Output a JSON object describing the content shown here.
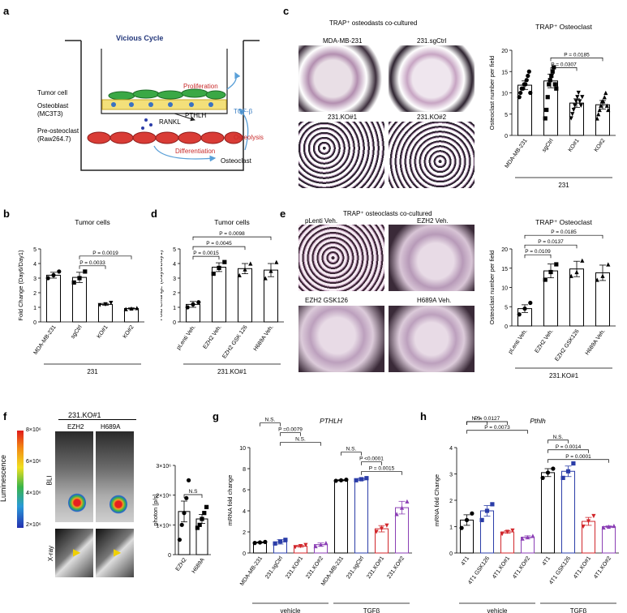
{
  "panels": {
    "a": {
      "letter": "a",
      "title": "Vicious Cycle",
      "labels": [
        "Tumor cell",
        "Osteoblast",
        "(MC3T3)",
        "Pre-osteoclast",
        "(Raw264.7)",
        "Proliferation",
        "PTHLH",
        "RANKL",
        "TGF-β",
        "Osteolysis",
        "Differentiation",
        "Osteoclast"
      ]
    },
    "c": {
      "letter": "c",
      "title": "TRAP⁺ osteodasts co-cultured",
      "images": [
        "MDA-MB-231",
        "231.sgCtrl",
        "231.KO#1",
        "231.KO#2"
      ]
    },
    "b": {
      "letter": "b"
    },
    "d": {
      "letter": "d"
    },
    "e": {
      "letter": "e",
      "title": "TRAP⁺ osteoclasts co-cultured",
      "images": [
        "pLenti Veh.",
        "EZH2 Veh.",
        "EZH2 GSK126",
        "H689A Veh."
      ]
    },
    "f": {
      "letter": "f",
      "group": "231.KO#1",
      "cols": [
        "EZH2",
        "H689A"
      ],
      "bli_label": "BLI",
      "xray_label": "X-ray",
      "lum_label": "Luminescence",
      "scale": [
        "8×10⁶",
        "6×10⁶",
        "4×10⁶",
        "2×10⁶"
      ]
    },
    "g": {
      "letter": "g"
    },
    "h": {
      "letter": "h"
    }
  },
  "chart_data": [
    {
      "id": "c-chart",
      "type": "bar",
      "title": "TRAP⁺ Osteoclast",
      "ylabel": "Osteoclast number per field",
      "ylim": [
        0,
        20
      ],
      "yticks": [
        0,
        5,
        10,
        15,
        20
      ],
      "categories": [
        "MDA-MB-231",
        "sgCtrl",
        "KO#1",
        "KO#2"
      ],
      "values": [
        11.8,
        12.8,
        7.6,
        7.2
      ],
      "errors": [
        1.0,
        1.6,
        1.0,
        1.0
      ],
      "points": [
        [
          9,
          10,
          11,
          11,
          12,
          12,
          13,
          14,
          15,
          10
        ],
        [
          4,
          6,
          9,
          12,
          13,
          14,
          15,
          16,
          12,
          11
        ],
        [
          4,
          5,
          6,
          7,
          8,
          9,
          10,
          8,
          7,
          9
        ],
        [
          4,
          5,
          6,
          7,
          8,
          8,
          9,
          10,
          7,
          6
        ]
      ],
      "markers": [
        "circle",
        "square",
        "triangle-down",
        "triangle-up"
      ],
      "colors": [
        "#000",
        "#000",
        "#000",
        "#000"
      ],
      "group_label": "231",
      "pvalues": [
        {
          "from": 1,
          "to": 3,
          "text": "P = 0.0185"
        },
        {
          "from": 1,
          "to": 2,
          "text": "P = 0.0307"
        }
      ]
    },
    {
      "id": "b-chart",
      "type": "bar",
      "title": "Tumor cells",
      "ylabel": "Fold Change (Day6/Day1)",
      "ylim": [
        0,
        5
      ],
      "yticks": [
        0,
        1,
        2,
        3,
        4,
        5
      ],
      "categories": [
        "MDA-MB-231",
        "sgCtrl",
        "KO#1",
        "KO#2"
      ],
      "values": [
        3.2,
        3.05,
        1.2,
        0.92
      ],
      "errors": [
        0.2,
        0.35,
        0.07,
        0.04
      ],
      "points": [
        [
          3.0,
          3.2,
          3.45
        ],
        [
          2.7,
          3.0,
          3.45
        ],
        [
          1.15,
          1.2,
          1.3
        ],
        [
          0.88,
          0.92,
          0.95
        ]
      ],
      "markers": [
        "circle",
        "square",
        "triangle-down",
        "triangle-up"
      ],
      "colors": [
        "#000",
        "#000",
        "#000",
        "#000"
      ],
      "group_label": "231",
      "pvalues": [
        {
          "from": 1,
          "to": 3,
          "text": "P = 0.0019"
        },
        {
          "from": 1,
          "to": 2,
          "text": "P = 0.0033"
        }
      ]
    },
    {
      "id": "d-chart",
      "type": "bar",
      "title": "Tumor cells",
      "ylabel": "Fold Change (Day6/Day1)",
      "ylim": [
        0,
        5
      ],
      "yticks": [
        0,
        1,
        2,
        3,
        4,
        5
      ],
      "categories": [
        "pLenti Veh.",
        "EZH2 Veh.",
        "EZH2 GSK 126",
        "H689A Veh."
      ],
      "values": [
        1.2,
        3.75,
        3.65,
        3.55
      ],
      "errors": [
        0.2,
        0.3,
        0.35,
        0.45
      ],
      "points": [
        [
          1.0,
          1.2,
          1.35
        ],
        [
          3.3,
          3.7,
          4.1
        ],
        [
          3.2,
          3.6,
          4.0
        ],
        [
          3.0,
          3.5,
          4.1
        ]
      ],
      "markers": [
        "circle",
        "square",
        "triangle-up",
        "triangle-up"
      ],
      "colors": [
        "#000",
        "#000",
        "#000",
        "#000"
      ],
      "group_label": "231.KO#1",
      "pvalues": [
        {
          "from": 0,
          "to": 3,
          "text": "P = 0.0098"
        },
        {
          "from": 0,
          "to": 2,
          "text": "P = 0.0045"
        },
        {
          "from": 0,
          "to": 1,
          "text": "P = 0.0015"
        }
      ]
    },
    {
      "id": "e-chart",
      "type": "bar",
      "title": "TRAP⁺ Osteoclast",
      "ylabel": "Osteoclast number per field",
      "ylim": [
        0,
        20
      ],
      "yticks": [
        0,
        5,
        10,
        15,
        20
      ],
      "categories": [
        "pLenti Veh.",
        "EZH2 Veh.",
        "EZH2 GSK126",
        "H689A Veh."
      ],
      "values": [
        4.5,
        14.3,
        14.8,
        13.8
      ],
      "errors": [
        1.0,
        1.8,
        2.0,
        2.0
      ],
      "points": [
        [
          3,
          4.5,
          6
        ],
        [
          12,
          14,
          16
        ],
        [
          13,
          14,
          17
        ],
        [
          12,
          13,
          16
        ]
      ],
      "markers": [
        "circle",
        "square",
        "triangle-up",
        "triangle-up"
      ],
      "colors": [
        "#000",
        "#000",
        "#000",
        "#000"
      ],
      "group_label": "231.KO#1",
      "pvalues": [
        {
          "from": 0,
          "to": 3,
          "text": "P = 0.0185"
        },
        {
          "from": 0,
          "to": 2,
          "text": "P = 0.0137"
        },
        {
          "from": 0,
          "to": 1,
          "text": "P = 0.0109"
        }
      ]
    },
    {
      "id": "f-chart",
      "type": "bar",
      "title": "",
      "ylabel": "photon  [p/s]",
      "ylim": [
        0,
        3000000.0
      ],
      "yticks": [
        0,
        1000000.0,
        2000000.0,
        3000000.0
      ],
      "ytick_labels": [
        "0",
        "1×10⁶",
        "2×10⁶",
        "3×10⁶"
      ],
      "categories": [
        "EZH2",
        "H689A"
      ],
      "values": [
        1450000.0,
        1200000.0
      ],
      "errors": [
        350000.0,
        150000.0
      ],
      "points": [
        [
          500000.0,
          1000000.0,
          1400000.0,
          1900000.0,
          2500000.0
        ],
        [
          900000.0,
          1000000.0,
          1200000.0,
          1400000.0,
          1600000.0
        ]
      ],
      "markers": [
        "circle",
        "square"
      ],
      "colors": [
        "#000",
        "#000"
      ],
      "pvalues": [
        {
          "from": 0,
          "to": 1,
          "text": "N.S"
        }
      ]
    },
    {
      "id": "g-chart",
      "type": "bar",
      "title": "PTHLH",
      "ylabel": "mRNA fold change",
      "ylim": [
        0,
        10
      ],
      "yticks": [
        0,
        2,
        4,
        6,
        8,
        10
      ],
      "categories": [
        "MDA-MB-231",
        "231.sgCtrl",
        "231.KO#1",
        "231.KO#2",
        "MDA-MB-231",
        "231.sgCtrl",
        "231.KO#1",
        "231.KO#2"
      ],
      "values": [
        1.0,
        1.05,
        0.65,
        0.8,
        6.9,
        7.0,
        2.3,
        4.3
      ],
      "errors": [
        0.05,
        0.2,
        0.1,
        0.15,
        0.05,
        0.1,
        0.3,
        0.6
      ],
      "points": [
        [
          0.95,
          1.0,
          1.05
        ],
        [
          0.9,
          1.1,
          1.25
        ],
        [
          0.55,
          0.65,
          0.75
        ],
        [
          0.65,
          0.8,
          0.95
        ],
        [
          6.85,
          6.9,
          6.95
        ],
        [
          6.9,
          7.0,
          7.1
        ],
        [
          2.0,
          2.3,
          2.6
        ],
        [
          3.7,
          4.3,
          4.9
        ]
      ],
      "markers": [
        "circle",
        "square",
        "triangle-down",
        "triangle-up",
        "circle",
        "square",
        "triangle-down",
        "triangle-up"
      ],
      "colors": [
        "#000",
        "#2b3da8",
        "#d1262b",
        "#8b3fb5",
        "#000",
        "#2b3da8",
        "#d1262b",
        "#8b3fb5"
      ],
      "groups": [
        {
          "label": "vehicle",
          "from": 0,
          "to": 3
        },
        {
          "label": "TGFβ",
          "from": 4,
          "to": 7
        }
      ],
      "pvalues": [
        {
          "from": 0,
          "to": 1,
          "text": "N.S."
        },
        {
          "from": 1,
          "to": 2,
          "text": "P =0.0079"
        },
        {
          "from": 1,
          "to": 3,
          "text": "N.S."
        },
        {
          "from": 4,
          "to": 5,
          "text": "N.S."
        },
        {
          "from": 5,
          "to": 6,
          "text": "P <0.0001"
        },
        {
          "from": 5,
          "to": 7,
          "text": "P = 0.0015"
        }
      ]
    },
    {
      "id": "h-chart",
      "type": "bar",
      "title": "Pthlh",
      "ylabel": "mRNA fold Change",
      "ylim": [
        0,
        4
      ],
      "yticks": [
        0,
        1,
        2,
        3,
        4
      ],
      "categories": [
        "4T1",
        "4T1 GSK126",
        "4T1.KO#1",
        "4T1.KO#2",
        "4T1",
        "4T1 GSK126",
        "4T1.KO#1",
        "4T1.KO#2"
      ],
      "values": [
        1.25,
        1.6,
        0.8,
        0.6,
        3.05,
        3.1,
        1.2,
        1.0
      ],
      "errors": [
        0.2,
        0.2,
        0.05,
        0.05,
        0.15,
        0.2,
        0.15,
        0.03
      ],
      "points": [
        [
          0.95,
          1.25,
          1.5
        ],
        [
          1.25,
          1.6,
          1.85
        ],
        [
          0.72,
          0.8,
          0.85
        ],
        [
          0.55,
          0.6,
          0.65
        ],
        [
          2.85,
          3.05,
          3.2
        ],
        [
          2.85,
          3.1,
          3.4
        ],
        [
          1.0,
          1.2,
          1.4
        ],
        [
          0.97,
          1.0,
          1.03
        ]
      ],
      "markers": [
        "circle",
        "square",
        "triangle-down",
        "triangle-up",
        "circle",
        "square",
        "triangle-down",
        "triangle-up"
      ],
      "colors": [
        "#000",
        "#2b3da8",
        "#d1262b",
        "#8b3fb5",
        "#000",
        "#2b3da8",
        "#d1262b",
        "#8b3fb5"
      ],
      "groups": [
        {
          "label": "vehicle",
          "from": 0,
          "to": 3
        },
        {
          "label": "TGFβ",
          "from": 4,
          "to": 7
        }
      ],
      "pvalues": [
        {
          "from": 0,
          "to": 1,
          "text": "N.S."
        },
        {
          "from": 0,
          "to": 2,
          "text": "P = 0.0127"
        },
        {
          "from": 0,
          "to": 3,
          "text": "P = 0.0073"
        },
        {
          "from": 4,
          "to": 5,
          "text": "N.S."
        },
        {
          "from": 4,
          "to": 6,
          "text": "P = 0.0014"
        },
        {
          "from": 4,
          "to": 7,
          "text": "P = 0.0001"
        }
      ]
    }
  ]
}
